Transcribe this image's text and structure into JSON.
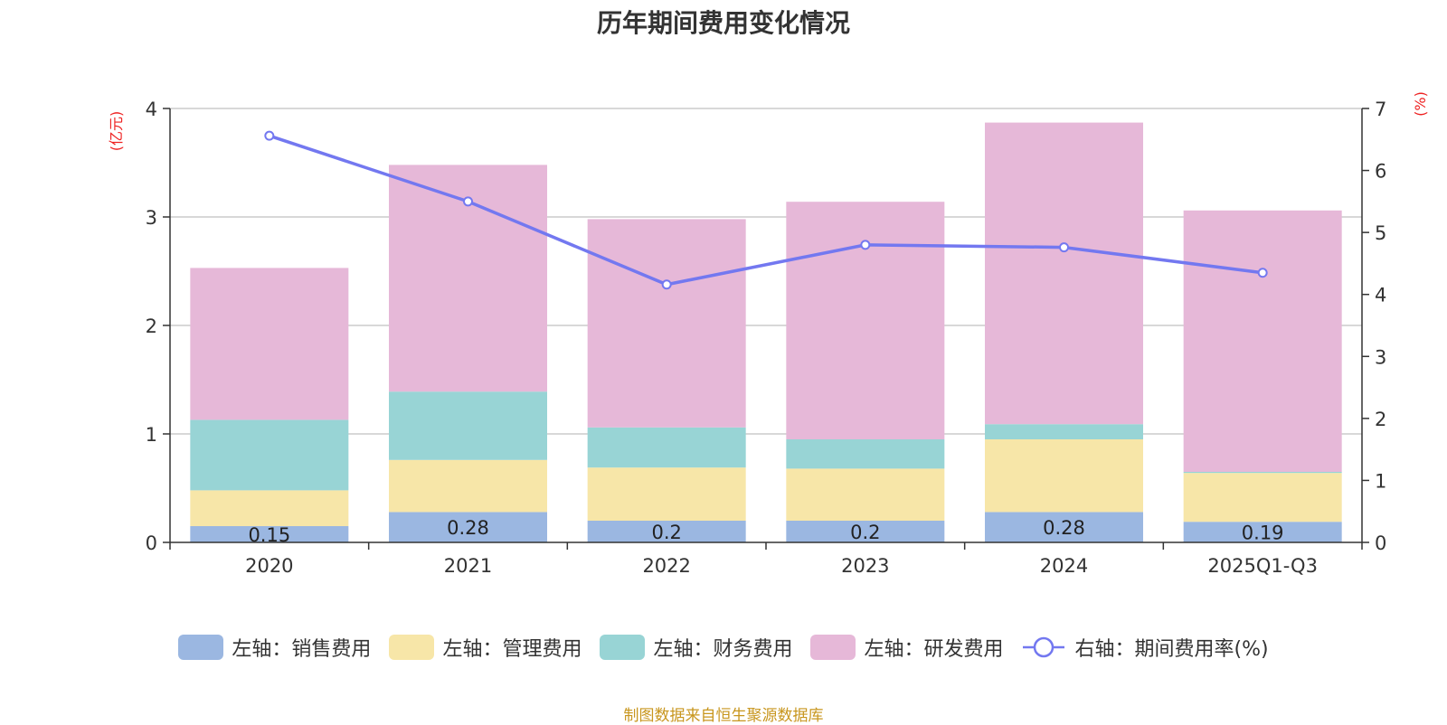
{
  "chart_data": {
    "type": "bar",
    "stacked": true,
    "title": "历年期间费用变化情况",
    "categories": [
      "2020",
      "2021",
      "2022",
      "2023",
      "2024",
      "2025Q1-Q3"
    ],
    "left_axis": {
      "unit": "(亿元)",
      "ylim": [
        0,
        4
      ],
      "ticks": [
        "0",
        "1",
        "2",
        "3",
        "4"
      ]
    },
    "right_axis": {
      "unit": "(%)",
      "ylim": [
        0,
        7
      ],
      "ticks": [
        "0",
        "1",
        "2",
        "3",
        "4",
        "5",
        "6",
        "7"
      ]
    },
    "series": [
      {
        "name": "左轴：销售费用",
        "axis": "left",
        "type": "bar",
        "color": "#9bb7e1",
        "values": [
          0.15,
          0.28,
          0.2,
          0.2,
          0.28,
          0.19
        ],
        "labels": [
          "0.15",
          "0.28",
          "0.2",
          "0.2",
          "0.28",
          "0.19"
        ]
      },
      {
        "name": "左轴：管理费用",
        "axis": "left",
        "type": "bar",
        "color": "#f7e6a8",
        "values": [
          0.33,
          0.48,
          0.49,
          0.48,
          0.67,
          0.45
        ]
      },
      {
        "name": "左轴：财务费用",
        "axis": "left",
        "type": "bar",
        "color": "#98d4d5",
        "values": [
          0.65,
          0.63,
          0.37,
          0.27,
          0.14,
          0.01
        ]
      },
      {
        "name": "左轴：研发费用",
        "axis": "left",
        "type": "bar",
        "color": "#e6b8d8",
        "values": [
          1.4,
          2.09,
          1.92,
          2.19,
          2.78,
          2.41
        ]
      },
      {
        "name": "右轴：期间费用率(%)",
        "axis": "right",
        "type": "line",
        "color": "#7378f0",
        "values": [
          6.56,
          5.5,
          4.16,
          4.8,
          4.76,
          4.35
        ]
      }
    ],
    "legend_position": "bottom",
    "grid": true
  },
  "source_note": "制图数据来自恒生聚源数据库"
}
